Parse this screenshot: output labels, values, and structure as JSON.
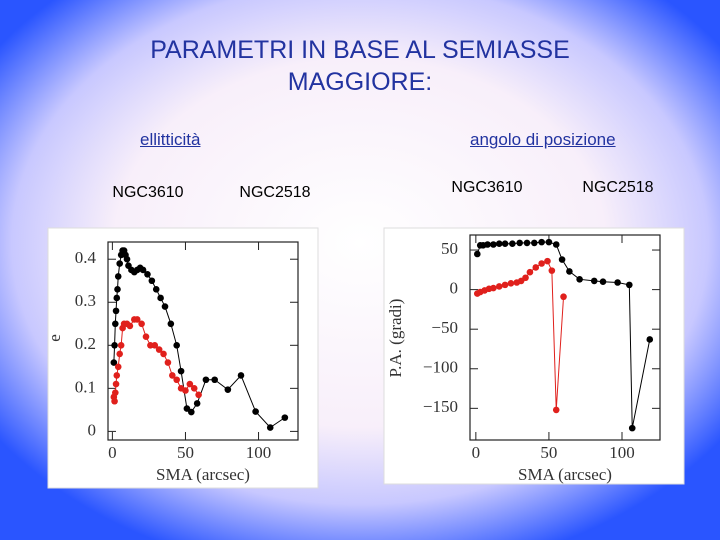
{
  "title": "PARAMETRI IN BASE AL SEMIASSE MAGGIORE:",
  "labels": [
    "ellitticità",
    "angolo di posizione"
  ],
  "chart_data": [
    {
      "type": "line",
      "xlabel": "SMA (arcsec)",
      "ylabel": "e",
      "xlim": [
        -3,
        127
      ],
      "ylim": [
        -0.02,
        0.44
      ],
      "xticks": [
        0,
        50,
        100
      ],
      "yticks": [
        0,
        0.1,
        0.2,
        0.3,
        0.4
      ],
      "series": [
        {
          "name": "NGC3610",
          "color": "#000000",
          "x": [
            1,
            1.5,
            2,
            2.5,
            3,
            3.5,
            4,
            5,
            6,
            7,
            8,
            9,
            10,
            11,
            13,
            15,
            17,
            19,
            21,
            24,
            27,
            30,
            33,
            36,
            40,
            44,
            47,
            51,
            54,
            58,
            64,
            70,
            79,
            88,
            98,
            108,
            118
          ],
          "values": [
            0.16,
            0.2,
            0.25,
            0.28,
            0.31,
            0.33,
            0.36,
            0.39,
            0.41,
            0.42,
            0.42,
            0.41,
            0.4,
            0.385,
            0.375,
            0.37,
            0.375,
            0.38,
            0.375,
            0.365,
            0.35,
            0.33,
            0.31,
            0.29,
            0.25,
            0.2,
            0.14,
            0.053,
            0.045,
            0.065,
            0.12,
            0.12,
            0.097,
            0.13,
            0.046,
            0.009,
            0.032
          ]
        },
        {
          "name": "NGC2518",
          "color": "#e0201c",
          "x": [
            1,
            1.5,
            2,
            2.5,
            3,
            4,
            5,
            6,
            7,
            8,
            10,
            12,
            15,
            17,
            20,
            23,
            26,
            29,
            32,
            35,
            38,
            41,
            44,
            47,
            50,
            53,
            56,
            59
          ],
          "values": [
            0.08,
            0.07,
            0.09,
            0.11,
            0.13,
            0.15,
            0.18,
            0.2,
            0.24,
            0.25,
            0.25,
            0.245,
            0.26,
            0.26,
            0.25,
            0.22,
            0.2,
            0.2,
            0.19,
            0.18,
            0.16,
            0.13,
            0.12,
            0.1,
            0.095,
            0.11,
            0.1,
            0.085
          ]
        }
      ]
    },
    {
      "type": "line",
      "xlabel": "SMA (arcsec)",
      "ylabel": "P.A. (gradi)",
      "xlim": [
        -4,
        126
      ],
      "ylim": [
        -190,
        69
      ],
      "xticks": [
        0,
        50,
        100
      ],
      "yticks": [
        50,
        0,
        {
          "value": -50,
          "label": "−50"
        },
        {
          "value": -100,
          "label": "−100"
        },
        {
          "value": -150,
          "label": "−150"
        }
      ],
      "series": [
        {
          "name": "NGC3610",
          "color": "#000000",
          "x": [
            1,
            3,
            5,
            8,
            12,
            16,
            20,
            25,
            30,
            35,
            40,
            45,
            50,
            55,
            59,
            64,
            71,
            81,
            87,
            97,
            105,
            107,
            119
          ],
          "values": [
            45,
            56,
            56,
            57,
            57,
            58,
            58,
            58,
            59,
            59,
            59,
            60,
            60,
            57,
            38,
            23,
            13,
            11,
            10,
            9,
            6,
            -175,
            -63
          ]
        },
        {
          "name": "NGC2518",
          "color": "#e0201c",
          "x": [
            1,
            3,
            6,
            9,
            12,
            16,
            20,
            24,
            28,
            31,
            34,
            37,
            41,
            45,
            49,
            52,
            55,
            60
          ],
          "values": [
            -5,
            -3,
            -1,
            1,
            2,
            4,
            6,
            8,
            9,
            11,
            15,
            22,
            28,
            33,
            36,
            24,
            -152,
            -9
          ]
        }
      ]
    }
  ]
}
